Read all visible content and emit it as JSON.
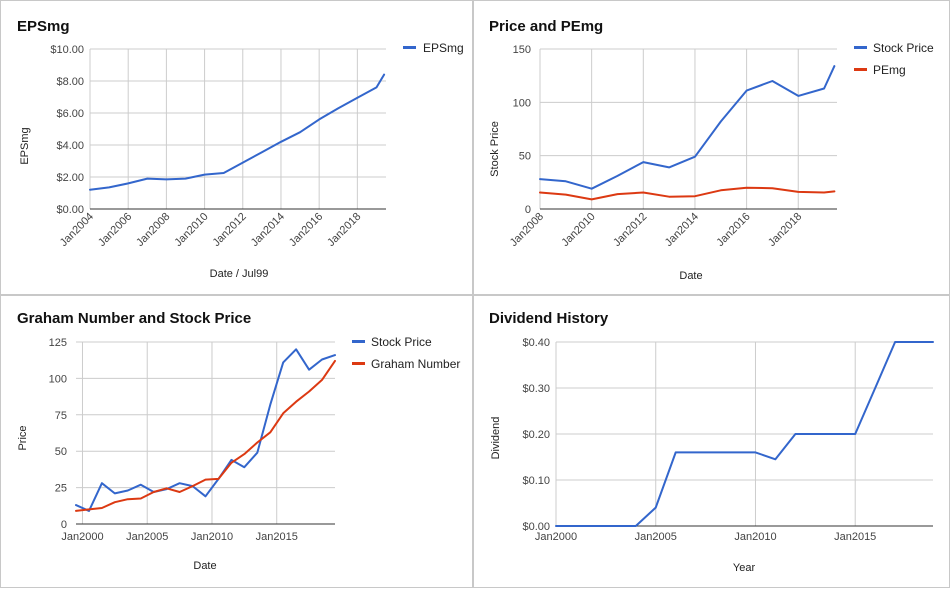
{
  "colors": {
    "blue": "#3366cc",
    "red": "#dc3912"
  },
  "chart_data": [
    {
      "type": "line",
      "title": "EPSmg",
      "xlabel": "Date / Jul99",
      "ylabel": "EPSmg",
      "x_ticks": [
        "Jan2004",
        "Jan2006",
        "Jan2008",
        "Jan2010",
        "Jan2012",
        "Jan2014",
        "Jan2016",
        "Jan2018"
      ],
      "y_ticks": [
        "$0.00",
        "$2.00",
        "$4.00",
        "$6.00",
        "$8.00",
        "$10.00"
      ],
      "xlim": [
        2004.0,
        2019.5
      ],
      "ylim": [
        0,
        10
      ],
      "legend_position": "right",
      "grid": true,
      "series": [
        {
          "name": "EPSmg",
          "color": "#3366cc",
          "x": [
            2004.0,
            2005.0,
            2006.0,
            2007.0,
            2008.0,
            2009.0,
            2010.0,
            2011.0,
            2012.0,
            2013.0,
            2014.0,
            2015.0,
            2016.0,
            2017.0,
            2018.0,
            2019.0,
            2019.4
          ],
          "y": [
            1.2,
            1.35,
            1.6,
            1.9,
            1.85,
            1.9,
            2.15,
            2.25,
            2.9,
            3.55,
            4.2,
            4.8,
            5.6,
            6.3,
            6.95,
            7.6,
            8.4
          ]
        }
      ]
    },
    {
      "type": "line",
      "title": "Price and PEmg",
      "xlabel": "Date",
      "ylabel": "Stock Price",
      "x_ticks": [
        "Jan2008",
        "Jan2010",
        "Jan2012",
        "Jan2014",
        "Jan2016",
        "Jan2018"
      ],
      "y_ticks": [
        "0",
        "50",
        "100",
        "150"
      ],
      "xlim": [
        2008.0,
        2019.5
      ],
      "ylim": [
        0,
        150
      ],
      "legend_position": "right",
      "grid": true,
      "series": [
        {
          "name": "Stock Price",
          "color": "#3366cc",
          "x": [
            2008.0,
            2009.0,
            2010.0,
            2011.0,
            2012.0,
            2013.0,
            2014.0,
            2015.0,
            2016.0,
            2017.0,
            2018.0,
            2019.0,
            2019.4
          ],
          "y": [
            28,
            26,
            19,
            31,
            44,
            39,
            49,
            82,
            111,
            120,
            106,
            113,
            134
          ]
        },
        {
          "name": "PEmg",
          "color": "#dc3912",
          "x": [
            2008.0,
            2009.0,
            2010.0,
            2011.0,
            2012.0,
            2013.0,
            2014.0,
            2015.0,
            2016.0,
            2017.0,
            2018.0,
            2019.0,
            2019.4
          ],
          "y": [
            15.5,
            13.5,
            9,
            14,
            15.5,
            11.5,
            12,
            17.5,
            20,
            19.5,
            16,
            15.5,
            16.5
          ]
        }
      ]
    },
    {
      "type": "line",
      "title": "Graham Number and Stock Price",
      "xlabel": "Date",
      "ylabel": "Price",
      "x_ticks": [
        "Jan2000",
        "Jan2005",
        "Jan2010",
        "Jan2015"
      ],
      "y_ticks": [
        "0",
        "25",
        "50",
        "75",
        "100",
        "125"
      ],
      "xlim": [
        1999.5,
        2019.5
      ],
      "ylim": [
        0,
        125
      ],
      "legend_position": "right",
      "grid": true,
      "series": [
        {
          "name": "Stock Price",
          "color": "#3366cc",
          "x": [
            1999.5,
            2000.5,
            2001.5,
            2002.5,
            2003.5,
            2004.5,
            2005.5,
            2006.5,
            2007.5,
            2008.5,
            2009.5,
            2010.5,
            2011.5,
            2012.5,
            2013.5,
            2014.5,
            2015.5,
            2016.5,
            2017.5,
            2018.5,
            2019.5
          ],
          "y": [
            13,
            9,
            28,
            21,
            23,
            27,
            22,
            24,
            28,
            26,
            19,
            31,
            44,
            39,
            49,
            82,
            111,
            120,
            106,
            113,
            116
          ]
        },
        {
          "name": "Graham Number",
          "color": "#dc3912",
          "x": [
            1999.5,
            2000.5,
            2001.5,
            2002.5,
            2003.5,
            2004.5,
            2005.5,
            2006.5,
            2007.5,
            2008.5,
            2009.5,
            2010.5,
            2011.5,
            2012.5,
            2013.5,
            2014.5,
            2015.5,
            2016.5,
            2017.5,
            2018.5,
            2019.5
          ],
          "y": [
            9,
            10,
            11,
            15,
            17,
            17.5,
            22,
            24.5,
            22,
            26,
            30.5,
            31,
            42,
            48,
            56,
            63,
            76,
            84,
            91,
            99,
            112
          ]
        }
      ]
    },
    {
      "type": "line",
      "title": "Dividend History",
      "xlabel": "Year",
      "ylabel": "Dividend",
      "x_ticks": [
        "Jan2000",
        "Jan2005",
        "Jan2010",
        "Jan2015"
      ],
      "y_ticks": [
        "$0.00",
        "$0.10",
        "$0.20",
        "$0.30",
        "$0.40"
      ],
      "xlim": [
        2000.0,
        2018.9
      ],
      "ylim": [
        0,
        0.4
      ],
      "legend_position": "none",
      "grid": true,
      "series": [
        {
          "color": "#3366cc",
          "x": [
            2000.0,
            2004.0,
            2005.0,
            2006.0,
            2007.0,
            2008.0,
            2009.0,
            2010.0,
            2011.0,
            2012.0,
            2013.0,
            2014.0,
            2015.0,
            2016.0,
            2017.0,
            2018.0,
            2018.9
          ],
          "y": [
            0,
            0,
            0.04,
            0.16,
            0.16,
            0.16,
            0.16,
            0.16,
            0.145,
            0.2,
            0.2,
            0.2,
            0.2,
            0.3,
            0.4,
            0.4,
            0.4
          ]
        }
      ]
    }
  ]
}
